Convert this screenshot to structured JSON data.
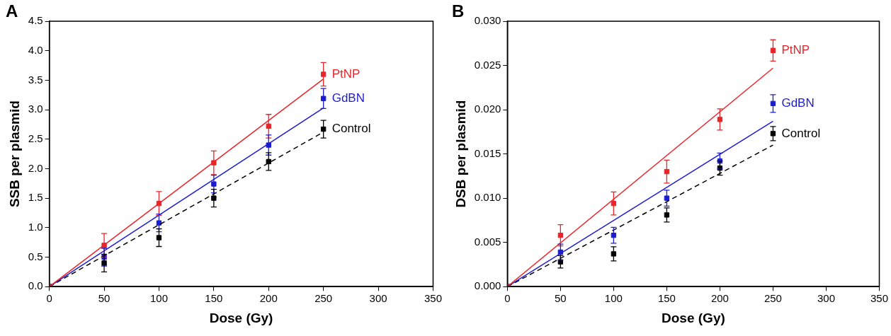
{
  "chart_data": [
    {
      "panel": "A",
      "type": "scatter",
      "x_label": "Dose (Gy)",
      "y_label": "SSB per plasmid",
      "x": [
        0,
        50,
        100,
        150,
        200,
        250
      ],
      "xlim": [
        0,
        350
      ],
      "xticks": [
        0,
        50,
        100,
        150,
        200,
        250,
        300,
        350
      ],
      "ylim": [
        0,
        4.5
      ],
      "yticks": [
        {
          "value": 0,
          "label": "0.0"
        },
        0.5,
        {
          "value": 1,
          "label": "1.0"
        },
        1.5,
        {
          "value": 2,
          "label": "2.0"
        },
        2.5,
        {
          "value": 3,
          "label": "3.0"
        },
        3.5,
        {
          "value": 4,
          "label": "4.0"
        },
        4.5
      ],
      "grid": false,
      "fit_x": [
        0,
        250
      ],
      "series": [
        {
          "name": "PtNP",
          "color": "#e8252a",
          "marker": "square",
          "line_style": "solid",
          "values": [
            0,
            0.7,
            1.41,
            2.1,
            2.72,
            3.6
          ],
          "errors": [
            0,
            0.2,
            0.2,
            0.2,
            0.2,
            0.2
          ],
          "fit": [
            0,
            3.52
          ]
        },
        {
          "name": "GdBN",
          "color": "#1c1cd0",
          "marker": "square",
          "line_style": "solid",
          "values": [
            0,
            0.5,
            1.08,
            1.74,
            2.4,
            3.19
          ],
          "errors": [
            0,
            0.15,
            0.15,
            0.15,
            0.17,
            0.17
          ],
          "fit": [
            0,
            3.03
          ]
        },
        {
          "name": "Control",
          "color": "#000000",
          "marker": "square",
          "line_style": "dashed",
          "values": [
            0,
            0.4,
            0.83,
            1.5,
            2.12,
            2.67
          ],
          "errors": [
            0,
            0.15,
            0.15,
            0.15,
            0.15,
            0.15
          ],
          "fit": [
            0,
            2.62
          ]
        }
      ]
    },
    {
      "panel": "B",
      "type": "scatter",
      "x_label": "Dose (Gy)",
      "y_label": "DSB per plasmid",
      "x": [
        0,
        50,
        100,
        150,
        200,
        250
      ],
      "xlim": [
        0,
        350
      ],
      "xticks": [
        0,
        50,
        100,
        150,
        200,
        250,
        300,
        350
      ],
      "ylim": [
        0,
        0.03
      ],
      "yticks": [
        {
          "value": 0,
          "label": "0.000"
        },
        0.005,
        {
          "value": 0.01,
          "label": "0.010"
        },
        0.015,
        {
          "value": 0.02,
          "label": "0.020"
        },
        0.025,
        {
          "value": 0.03,
          "label": "0.030"
        }
      ],
      "grid": false,
      "fit_x": [
        0,
        250
      ],
      "series": [
        {
          "name": "PtNP",
          "color": "#e8252a",
          "marker": "square",
          "line_style": "solid",
          "values": [
            0,
            0.0058,
            0.0094,
            0.013,
            0.0189,
            0.0267
          ],
          "errors": [
            0,
            0.0012,
            0.0013,
            0.0013,
            0.0012,
            0.0012
          ],
          "fit": [
            0,
            0.0247
          ]
        },
        {
          "name": "GdBN",
          "color": "#1c1cd0",
          "marker": "square",
          "line_style": "solid",
          "values": [
            0,
            0.0039,
            0.0058,
            0.01,
            0.0142,
            0.0207
          ],
          "errors": [
            0,
            0.0009,
            0.0009,
            0.0009,
            0.0009,
            0.001
          ],
          "fit": [
            0,
            0.0187
          ]
        },
        {
          "name": "Control",
          "color": "#000000",
          "marker": "square",
          "line_style": "dashed",
          "values": [
            0,
            0.0028,
            0.0037,
            0.0081,
            0.0134,
            0.0173
          ],
          "errors": [
            0,
            0.0007,
            0.0008,
            0.0008,
            0.0008,
            0.0008
          ],
          "fit": [
            0,
            0.016
          ]
        }
      ]
    }
  ]
}
